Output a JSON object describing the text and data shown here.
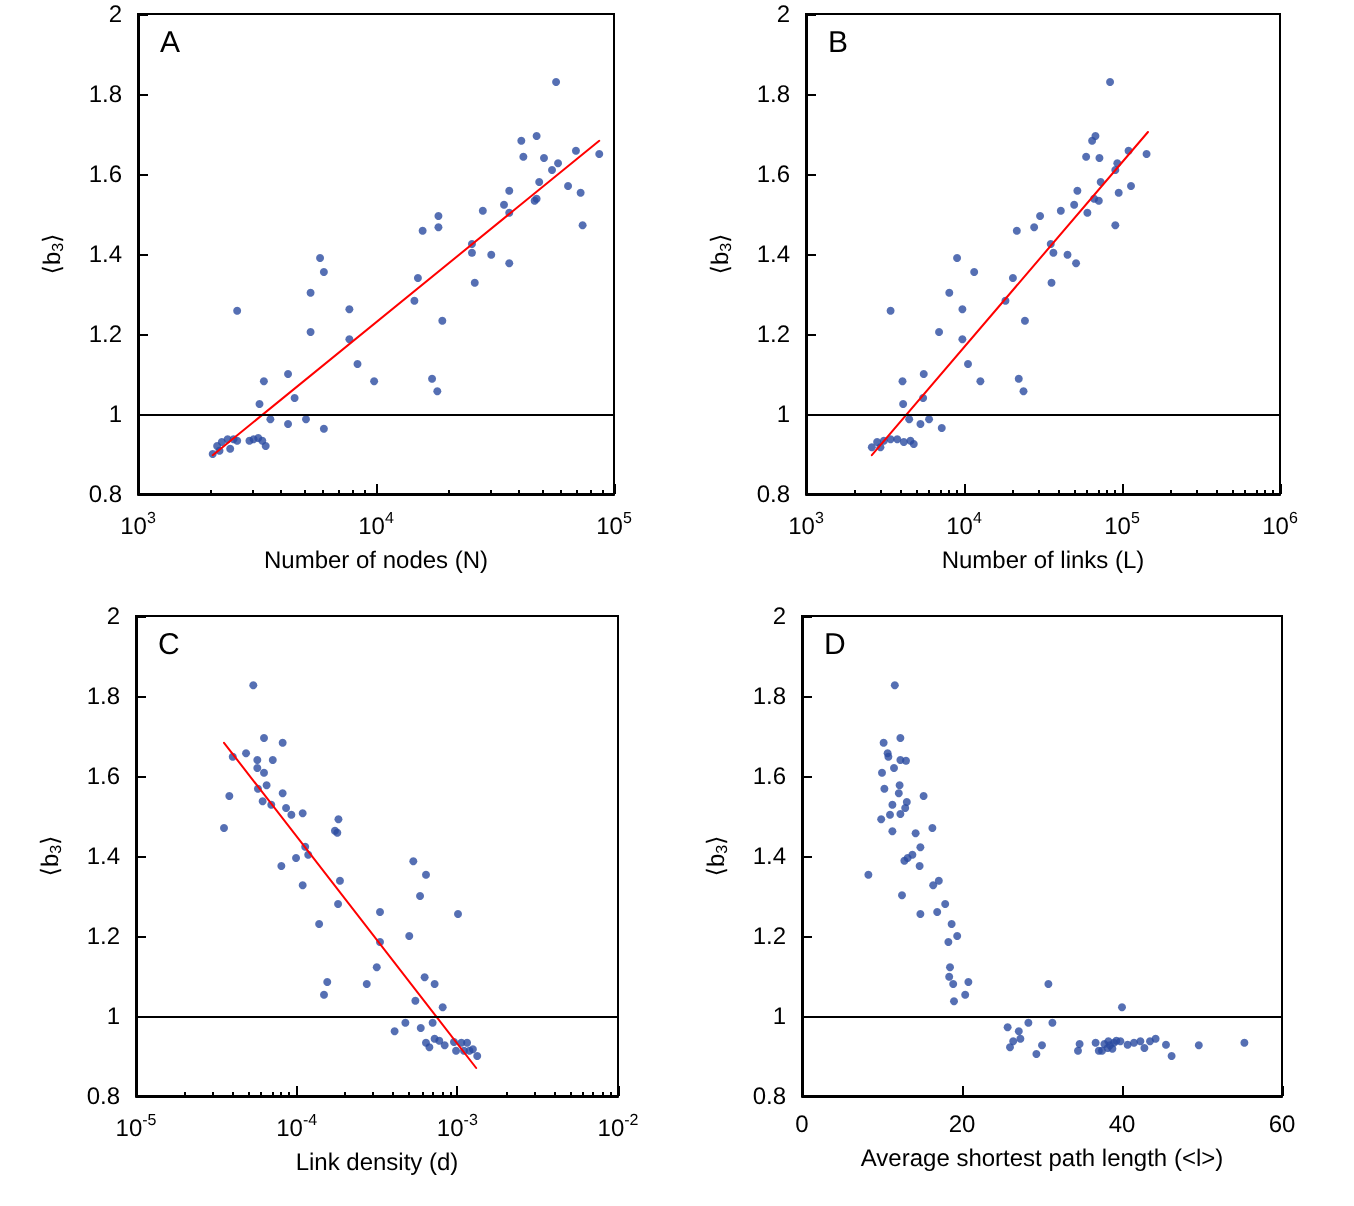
{
  "chart_data": [
    {
      "type": "scatter",
      "title": "A",
      "xlabel": "Number of nodes (N)",
      "ylabel": "⟨b$_{3}$⟩",
      "log": "x",
      "xlim": [
        1000,
        100000
      ],
      "xticks": [
        {
          "value": 1000,
          "label": "10$^{3}$"
        },
        {
          "value": 10000,
          "label": "10$^{4}$"
        },
        {
          "value": 100000,
          "label": "10$^{5}$"
        }
      ],
      "ylim": [
        0.8,
        2
      ],
      "yticks": [
        0.8,
        1,
        1.2,
        1.4,
        1.6,
        1.8,
        2
      ],
      "grid": false,
      "marker": "circle",
      "ref_lines": [
        {
          "axis": "y",
          "value": 1,
          "color": "#000000"
        }
      ],
      "series": [
        {
          "color": "#2b4ba0",
          "x": [
            2060,
            2150,
            2250,
            2380,
            2520,
            2610,
            2440,
            2200,
            2610,
            2940,
            3060,
            3200,
            3330,
            3440,
            3240,
            3380,
            3600,
            4270,
            4270,
            4550,
            5080,
            5310,
            5310,
            5820,
            6040,
            6040,
            7730,
            7730,
            8360,
            9820,
            14500,
            15000,
            15700,
            17200,
            18100,
            18300,
            18300,
            19000,
            25300,
            25300,
            26000,
            28100,
            30500,
            34500,
            36300,
            36300,
            36300,
            40800,
            41600,
            46400,
            47300,
            47300,
            48500,
            50800,
            54900,
            57100,
            58200,
            64100,
            69200,
            72400,
            73800,
            86700
          ],
          "values": [
            0.9,
            0.92,
            0.93,
            0.937,
            0.937,
            0.933,
            0.913,
            0.908,
            1.258,
            0.933,
            0.937,
            0.94,
            0.933,
            0.92,
            1.025,
            1.082,
            0.987,
            0.975,
            1.1,
            1.04,
            0.987,
            1.303,
            1.205,
            1.39,
            1.355,
            0.963,
            1.262,
            1.187,
            1.125,
            1.082,
            1.283,
            1.34,
            1.458,
            1.088,
            1.057,
            1.467,
            1.495,
            1.233,
            1.425,
            1.403,
            1.328,
            1.508,
            1.398,
            1.523,
            1.558,
            1.503,
            1.377,
            1.683,
            1.643,
            1.533,
            1.695,
            1.538,
            1.58,
            1.64,
            1.61,
            1.83,
            1.627,
            1.57,
            1.658,
            1.553,
            1.472,
            1.65
          ]
        },
        {
          "type": "line",
          "marker": "none",
          "color": "#ff0000",
          "x": [
            2060,
            86700
          ],
          "values": [
            0.897,
            1.683
          ]
        }
      ]
    },
    {
      "type": "scatter",
      "title": "B",
      "xlabel": "Number of links (L)",
      "ylabel": "⟨b$_{3}$⟩",
      "log": "x",
      "xlim": [
        1000,
        1000000
      ],
      "xticks": [
        {
          "value": 1000,
          "label": "10$^{3}$"
        },
        {
          "value": 10000,
          "label": "10$^{4}$"
        },
        {
          "value": 100000,
          "label": "10$^{5}$"
        },
        {
          "value": 1000000,
          "label": "10$^{6}$"
        }
      ],
      "ylim": [
        0.8,
        2
      ],
      "yticks": [
        0.8,
        1,
        1.2,
        1.4,
        1.6,
        1.8,
        2
      ],
      "grid": false,
      "marker": "circle",
      "ref_lines": [
        {
          "axis": "y",
          "value": 1,
          "color": "#000000"
        }
      ],
      "series": [
        {
          "color": "#2b4ba0",
          "x": [
            2610,
            2820,
            3110,
            3430,
            3780,
            4160,
            4580,
            4810,
            2960,
            3430,
            4080,
            4120,
            4500,
            5300,
            5560,
            5510,
            6010,
            7230,
            6950,
            8070,
            9040,
            9770,
            9770,
            10600,
            11600,
            12700,
            18300,
            20400,
            21600,
            22200,
            23800,
            24300,
            27800,
            30300,
            35400,
            35800,
            36800,
            41000,
            45200,
            49800,
            51200,
            52200,
            59300,
            60400,
            64700,
            67900,
            66600,
            71300,
            72000,
            73300,
            84000,
            90700,
            90700,
            93400,
            95300,
            110000,
            114000,
            143000
          ],
          "values": [
            0.917,
            0.93,
            0.933,
            0.937,
            0.937,
            0.93,
            0.933,
            0.925,
            0.917,
            1.258,
            1.082,
            1.025,
            0.987,
            0.975,
            1.1,
            1.04,
            0.987,
            0.965,
            1.205,
            1.303,
            1.39,
            1.262,
            1.187,
            1.125,
            1.355,
            1.082,
            1.283,
            1.34,
            1.458,
            1.088,
            1.057,
            1.233,
            1.467,
            1.495,
            1.425,
            1.328,
            1.403,
            1.508,
            1.398,
            1.523,
            1.377,
            1.558,
            1.643,
            1.503,
            1.683,
            1.695,
            1.538,
            1.533,
            1.64,
            1.58,
            1.83,
            1.472,
            1.61,
            1.627,
            1.553,
            1.658,
            1.57,
            1.65
          ]
        },
        {
          "type": "line",
          "marker": "none",
          "color": "#ff0000",
          "x": [
            2610,
            146000
          ],
          "values": [
            0.897,
            1.705
          ]
        }
      ]
    },
    {
      "type": "scatter",
      "title": "C",
      "xlabel": "Link density (d)",
      "ylabel": "⟨b$_{3}$⟩",
      "log": "x",
      "xlim": [
        1e-05,
        0.01
      ],
      "xticks": [
        {
          "value": 1e-05,
          "label": "10$^{-5}$"
        },
        {
          "value": 0.0001,
          "label": "10$^{-4}$"
        },
        {
          "value": 0.001,
          "label": "10$^{-3}$"
        },
        {
          "value": 0.01,
          "label": "10$^{-2}$"
        }
      ],
      "ylim": [
        0.8,
        2
      ],
      "yticks": [
        0.8,
        1,
        1.2,
        1.4,
        1.6,
        1.8,
        2
      ],
      "grid": false,
      "marker": "circle",
      "ref_lines": [
        {
          "axis": "y",
          "value": 1,
          "color": "#000000"
        }
      ],
      "series": [
        {
          "color": "#2b4ba0",
          "x": [
            3.53e-05,
            3.81e-05,
            4e-05,
            4.84e-05,
            5.37e-05,
            5.69e-05,
            5.69e-05,
            5.74e-05,
            6.14e-05,
            6.26e-05,
            6.26e-05,
            6.5e-05,
            6.95e-05,
            7.1e-05,
            8.03e-05,
            8.18e-05,
            8.18e-05,
            8.59e-05,
            9.27e-05,
            9.91e-05,
            0.000109,
            0.000109,
            0.000113,
            0.000118,
            0.000138,
            0.000148,
            0.000155,
            0.000173,
            0.000179,
            0.000181,
            0.000182,
            0.000186,
            0.000273,
            0.000315,
            0.00033,
            0.00033,
            0.000407,
            0.000475,
            0.000502,
            0.000532,
            0.000548,
            0.000586,
            0.000592,
            0.000626,
            0.000638,
            0.000638,
            0.00067,
            0.000702,
            0.000722,
            0.000722,
            0.000772,
            0.000811,
            0.000834,
            0.000953,
            0.000982,
            0.00101,
            0.00106,
            0.0011,
            0.00115,
            0.00119,
            0.00125,
            0.00133
          ],
          "values": [
            1.47,
            1.55,
            1.648,
            1.657,
            1.827,
            1.64,
            1.62,
            1.568,
            1.537,
            1.695,
            1.608,
            1.577,
            1.528,
            1.64,
            1.375,
            1.683,
            1.557,
            1.52,
            1.503,
            1.395,
            1.507,
            1.327,
            1.423,
            1.403,
            1.23,
            1.053,
            1.085,
            1.463,
            1.458,
            1.28,
            1.492,
            1.338,
            1.08,
            1.122,
            1.26,
            1.185,
            0.962,
            0.983,
            1.2,
            1.387,
            1.038,
            1.3,
            0.97,
            1.097,
            1.353,
            0.933,
            0.922,
            0.983,
            1.08,
            0.943,
            0.938,
            1.022,
            0.927,
            0.935,
            0.913,
            1.255,
            0.933,
            0.913,
            0.933,
            0.913,
            0.917,
            0.9
          ]
        },
        {
          "type": "line",
          "marker": "none",
          "color": "#ff0000",
          "x": [
            3.53e-05,
            0.00131
          ],
          "values": [
            1.683,
            0.87
          ]
        }
      ]
    },
    {
      "type": "scatter",
      "title": "D",
      "xlabel": "Average shortest path length (<l>)",
      "ylabel": "⟨b$_{3}$⟩",
      "xlim": [
        0,
        60
      ],
      "xticks": [
        0,
        20,
        40,
        60
      ],
      "ylim": [
        0.8,
        2
      ],
      "yticks": [
        0.8,
        1,
        1.2,
        1.4,
        1.6,
        1.8,
        2
      ],
      "grid": false,
      "marker": "circle",
      "ref_lines": [
        {
          "axis": "y",
          "value": 1,
          "color": "#000000"
        }
      ],
      "series": [
        {
          "color": "#2b4ba0",
          "x": [
            8.3,
            9.9,
            10,
            10.2,
            10.3,
            10.7,
            10.8,
            11,
            11.3,
            11.3,
            11.5,
            11.6,
            12.1,
            12.2,
            12.3,
            12.3,
            12.3,
            12.5,
            12.8,
            12.9,
            13,
            13.1,
            13.2,
            13.8,
            14.2,
            14.7,
            14.8,
            14.8,
            15.2,
            16.3,
            16.4,
            16.9,
            17.1,
            17.9,
            18.3,
            18.4,
            18.5,
            18.7,
            18.9,
            19,
            19.4,
            20.4,
            20.8,
            25.7,
            26,
            26.4,
            27.1,
            27.3,
            28.3,
            29.3,
            30,
            30.8,
            31.3,
            34.5,
            34.7,
            36.7,
            37.1,
            37.5,
            37.8,
            38.2,
            38.3,
            38.5,
            38.8,
            39,
            39.3,
            39.8,
            40,
            40.7,
            41.5,
            42.3,
            42.8,
            43.5,
            44.2,
            45.5,
            46.2,
            49.6,
            55.3
          ],
          "values": [
            1.353,
            1.492,
            1.608,
            1.683,
            1.568,
            1.657,
            1.648,
            1.503,
            1.462,
            1.528,
            1.62,
            1.827,
            1.557,
            1.577,
            1.695,
            1.64,
            1.505,
            1.302,
            1.388,
            1.52,
            1.638,
            1.535,
            1.395,
            1.403,
            1.457,
            1.375,
            1.422,
            1.255,
            1.55,
            1.47,
            1.327,
            1.26,
            1.338,
            1.28,
            1.185,
            1.098,
            1.122,
            1.23,
            1.08,
            1.037,
            1.2,
            1.053,
            1.085,
            0.972,
            0.922,
            0.937,
            0.962,
            0.943,
            0.983,
            0.905,
            0.927,
            1.08,
            0.983,
            0.913,
            0.93,
            0.933,
            0.913,
            0.913,
            0.93,
            0.92,
            0.937,
            0.927,
            0.918,
            0.933,
            0.938,
            0.937,
            1.022,
            0.928,
            0.933,
            0.937,
            0.92,
            0.937,
            0.943,
            0.928,
            0.9,
            0.927,
            0.933
          ]
        }
      ]
    }
  ]
}
